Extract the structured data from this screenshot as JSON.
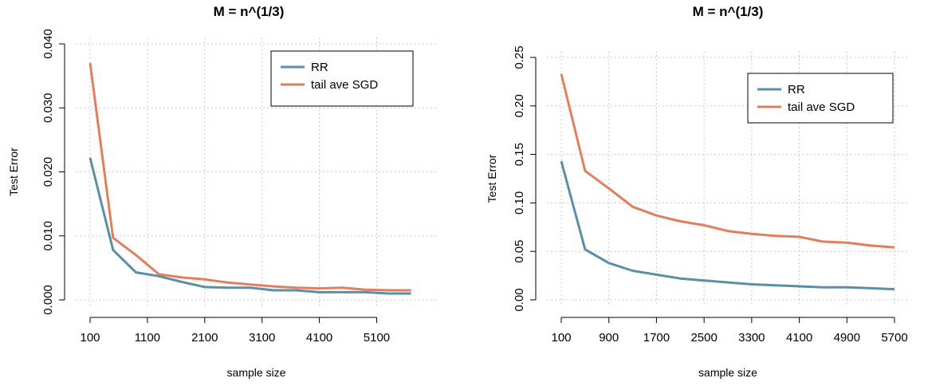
{
  "colors": {
    "rr": "#5b8ea8",
    "sgd": "#df7f5d"
  },
  "chart_data": [
    {
      "type": "line",
      "title": "M = n^(1/3)",
      "xlabel": "sample size",
      "ylabel": "Test Error",
      "xticks": [
        100,
        1100,
        2100,
        3100,
        4100,
        5100
      ],
      "xlim": [
        100,
        5900
      ],
      "yticks": [
        0.0,
        0.01,
        0.02,
        0.03,
        0.04
      ],
      "ytick_labels": [
        "0.000",
        "0.010",
        "0.020",
        "0.030",
        "0.040"
      ],
      "ylim": [
        0.0,
        0.04
      ],
      "grid": true,
      "legend": "top-right",
      "x": [
        100,
        500,
        900,
        1300,
        1700,
        2100,
        2500,
        2900,
        3300,
        3700,
        4100,
        4500,
        4900,
        5300,
        5700
      ],
      "series": [
        {
          "name": "RR",
          "color": "#5b8ea8",
          "values": [
            0.0222,
            0.0078,
            0.0043,
            0.0037,
            0.0028,
            0.002,
            0.0019,
            0.0019,
            0.0015,
            0.0015,
            0.0012,
            0.0012,
            0.0012,
            0.001,
            0.001
          ]
        },
        {
          "name": "tail ave SGD",
          "color": "#df7f5d",
          "values": [
            0.037,
            0.0097,
            0.007,
            0.004,
            0.0035,
            0.0032,
            0.0027,
            0.0024,
            0.0021,
            0.0019,
            0.0018,
            0.0019,
            0.0016,
            0.0015,
            0.0015
          ]
        }
      ]
    },
    {
      "type": "line",
      "title": "M = n^(1/3)",
      "xlabel": "sample size",
      "ylabel": "Test Error",
      "xticks": [
        100,
        900,
        1700,
        2500,
        3300,
        4100,
        4900,
        5700
      ],
      "xlim": [
        100,
        5700
      ],
      "yticks": [
        0.0,
        0.05,
        0.1,
        0.15,
        0.2,
        0.25
      ],
      "ytick_labels": [
        "0.00",
        "0.05",
        "0.10",
        "0.15",
        "0.20",
        "0.25"
      ],
      "ylim": [
        0.0,
        0.25
      ],
      "grid": true,
      "legend": "top-right",
      "x": [
        100,
        500,
        900,
        1300,
        1700,
        2100,
        2500,
        2900,
        3300,
        3700,
        4100,
        4500,
        4900,
        5300,
        5700
      ],
      "series": [
        {
          "name": "RR",
          "color": "#5b8ea8",
          "values": [
            0.143,
            0.052,
            0.038,
            0.03,
            0.026,
            0.022,
            0.02,
            0.018,
            0.016,
            0.015,
            0.014,
            0.013,
            0.013,
            0.012,
            0.011
          ]
        },
        {
          "name": "tail ave SGD",
          "color": "#df7f5d",
          "values": [
            0.233,
            0.133,
            0.115,
            0.096,
            0.087,
            0.081,
            0.077,
            0.071,
            0.068,
            0.066,
            0.065,
            0.06,
            0.059,
            0.056,
            0.054
          ]
        }
      ]
    }
  ]
}
